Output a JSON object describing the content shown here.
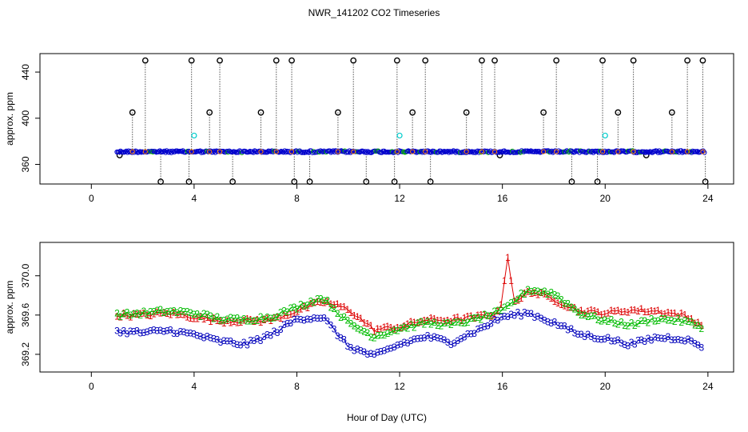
{
  "title": "NWR_141202  CO2 Timeseries",
  "xlabel": "Hour of Day (UTC)",
  "colors": {
    "s1": "#000000",
    "s2": "#0000cc",
    "s3": "#00aa00",
    "s4": "#ff7f00",
    "s5": "#00cccc",
    "red": "#dd0000",
    "green": "#00bb00",
    "blue": "#0000bb"
  },
  "chart_data": [
    {
      "type": "scatter",
      "panel": "top",
      "ylabel": "approx. ppm",
      "xlim": [
        -2,
        25
      ],
      "ylim": [
        343,
        456
      ],
      "xticks": [
        0,
        4,
        8,
        12,
        16,
        20,
        24
      ],
      "yticks": [
        360,
        400,
        440
      ],
      "baseline": 371,
      "x_range": [
        1.0,
        23.9
      ],
      "spike_x": [
        1.6,
        2.1,
        3.9,
        4.6,
        5.0,
        6.6,
        7.2,
        7.8,
        9.6,
        10.2,
        11.9,
        12.5,
        13.0,
        14.6,
        15.2,
        15.7,
        17.6,
        18.1,
        19.9,
        20.5,
        21.1,
        22.6,
        23.2,
        23.8
      ],
      "spike_y": [
        405,
        450,
        450,
        405,
        450,
        405,
        450,
        450,
        405,
        450,
        450,
        405,
        450,
        405,
        450,
        450,
        405,
        450,
        450,
        405,
        450,
        405,
        450,
        450
      ],
      "low_x": [
        1.1,
        2.7,
        3.8,
        5.5,
        7.9,
        8.5,
        10.7,
        11.8,
        13.2,
        15.9,
        18.7,
        19.7,
        21.6,
        23.9
      ],
      "low_y": [
        368,
        345,
        345,
        345,
        345,
        345,
        345,
        345,
        345,
        368,
        345,
        345,
        368,
        345
      ],
      "cyan_x": [
        4.0,
        12.0,
        20.0
      ],
      "cyan_y": [
        385,
        385,
        385
      ]
    },
    {
      "type": "scatter",
      "panel": "bottom",
      "ylabel": "approx. ppm",
      "xlim": [
        -2,
        25
      ],
      "ylim": [
        369.02,
        370.34
      ],
      "xticks": [
        0,
        4,
        8,
        12,
        16,
        20,
        24
      ],
      "yticks": [
        369.2,
        369.6,
        370.0
      ],
      "ytick_labels": [
        "369.2",
        "369.6",
        "370.0"
      ],
      "series": [
        {
          "name": "1",
          "label": "1",
          "x": [
            1.0,
            2.0,
            3.0,
            4.0,
            5.0,
            6.0,
            7.0,
            8.0,
            9.0,
            10.0,
            11.0,
            12.0,
            13.0,
            14.0,
            15.0,
            15.9,
            16.2,
            16.5,
            17.0,
            18.0,
            19.0,
            20.0,
            21.0,
            22.0,
            23.0,
            23.8
          ],
          "y": [
            369.6,
            369.6,
            369.62,
            369.58,
            369.54,
            369.54,
            369.55,
            369.64,
            369.74,
            369.66,
            369.45,
            369.48,
            369.55,
            369.55,
            369.58,
            369.62,
            370.2,
            369.7,
            369.85,
            369.76,
            369.64,
            369.62,
            369.65,
            369.64,
            369.6,
            369.5
          ]
        },
        {
          "name": "2",
          "label": "2",
          "x": [
            1.0,
            2.0,
            3.0,
            4.0,
            5.0,
            6.0,
            7.0,
            8.0,
            9.0,
            10.0,
            11.0,
            12.0,
            13.0,
            14.0,
            15.0,
            16.0,
            17.0,
            18.0,
            19.0,
            20.0,
            21.0,
            22.0,
            23.0,
            23.8
          ],
          "y": [
            369.6,
            369.62,
            369.64,
            369.62,
            369.56,
            369.55,
            369.58,
            369.68,
            369.78,
            369.52,
            369.38,
            369.46,
            369.52,
            369.5,
            369.56,
            369.64,
            369.86,
            369.82,
            369.62,
            369.54,
            369.5,
            369.56,
            369.54,
            369.48
          ]
        },
        {
          "name": "3",
          "label": "3",
          "x": [
            1.0,
            2.0,
            3.0,
            4.0,
            5.0,
            6.0,
            7.0,
            8.0,
            9.0,
            10.0,
            11.0,
            12.0,
            13.0,
            14.0,
            15.0,
            16.0,
            17.0,
            18.0,
            19.0,
            20.0,
            21.0,
            22.0,
            23.0,
            23.8
          ],
          "y": [
            369.43,
            369.42,
            369.44,
            369.4,
            369.33,
            369.3,
            369.4,
            369.56,
            369.58,
            369.28,
            369.18,
            369.3,
            369.38,
            369.32,
            369.44,
            369.58,
            369.62,
            369.52,
            369.4,
            369.36,
            369.3,
            369.37,
            369.36,
            369.28
          ]
        }
      ]
    }
  ]
}
